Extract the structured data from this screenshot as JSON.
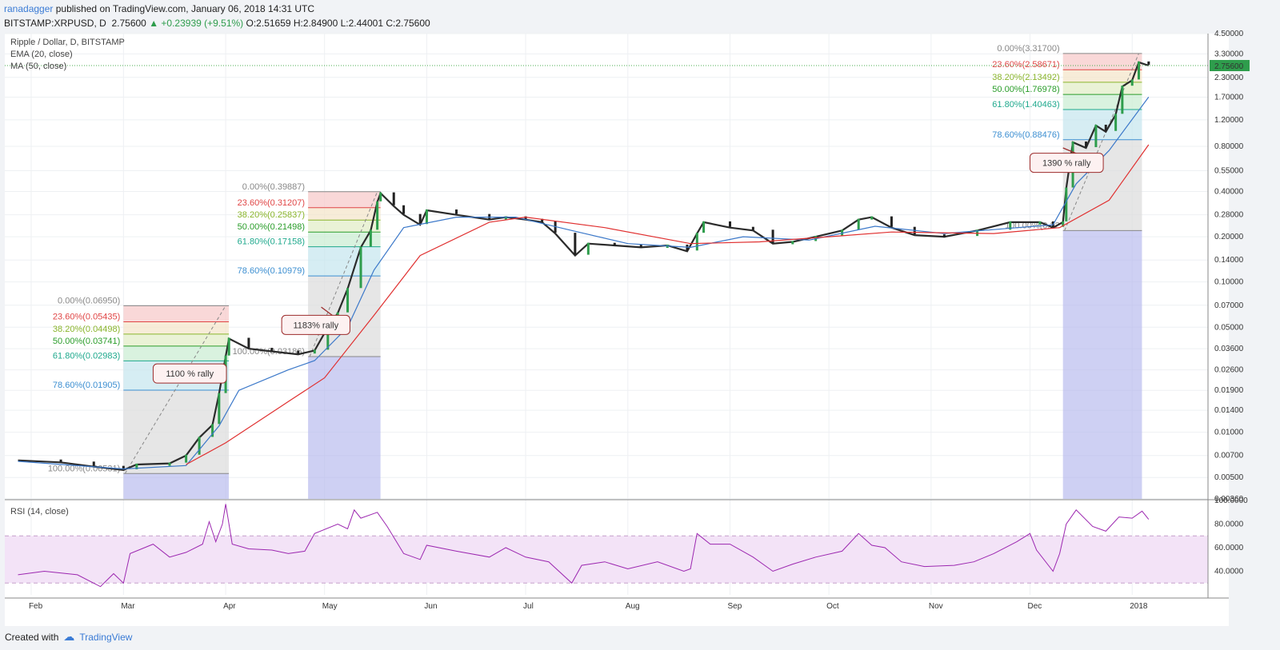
{
  "header": {
    "author": "ranadagger",
    "published": "published on TradingView.com, January 06, 2018 14:31 UTC",
    "symbol": "BITSTAMP:XRPUSD, D",
    "last": "2.75600",
    "change": "▲ +0.23939 (+9.51%)",
    "ohlc": "O:2.51659 H:2.84900 L:2.44001 C:2.75600"
  },
  "legend": {
    "title": "Ripple / Dollar, D, BITSTAMP",
    "ema": "EMA (20, close)",
    "ma": "MA (50, close)",
    "rsi": "RSI (14, close)"
  },
  "footer": {
    "created_with": "Created with",
    "brand": "TradingView"
  },
  "colors": {
    "ema": "#3b78c9",
    "ma": "#e03030",
    "rsi": "#9c27b0",
    "up": "#2e9d4c",
    "down": "#222222",
    "last_badge": "#2e9d4c"
  },
  "chart_data": [
    {
      "type": "candlestick",
      "title": "Ripple / Dollar, D, BITSTAMP",
      "y_scale": "log",
      "ylim": [
        0.0036,
        4.5
      ],
      "y_ticks": [
        "4.50000",
        "3.30000",
        "2.30000",
        "1.70000",
        "1.20000",
        "0.80000",
        "0.55000",
        "0.40000",
        "0.28000",
        "0.20000",
        "0.14000",
        "0.10000",
        "0.07000",
        "0.05000",
        "0.03600",
        "0.02600",
        "0.01900",
        "0.01400",
        "0.01000",
        "0.00700",
        "0.00500",
        "0.00360"
      ],
      "x_labels": [
        "Feb",
        "Mar",
        "Apr",
        "May",
        "Jun",
        "Jul",
        "Aug",
        "Sep",
        "Oct",
        "Nov",
        "Dec",
        "2018"
      ],
      "last_price_label": "2.75600",
      "price_path": [
        [
          "2017-01-28",
          0.0065
        ],
        [
          "2017-02-10",
          0.0063
        ],
        [
          "2017-02-20",
          0.0059
        ],
        [
          "2017-03-01",
          0.0056
        ],
        [
          "2017-03-05",
          0.0061
        ],
        [
          "2017-03-15",
          0.0062
        ],
        [
          "2017-03-20",
          0.007
        ],
        [
          "2017-03-24",
          0.0092
        ],
        [
          "2017-03-28",
          0.0112
        ],
        [
          "2017-03-30",
          0.018
        ],
        [
          "2017-04-01",
          0.032
        ],
        [
          "2017-04-02",
          0.042
        ],
        [
          "2017-04-08",
          0.036
        ],
        [
          "2017-04-15",
          0.0345
        ],
        [
          "2017-04-23",
          0.033
        ],
        [
          "2017-04-28",
          0.035
        ],
        [
          "2017-05-02",
          0.05
        ],
        [
          "2017-05-05",
          0.062
        ],
        [
          "2017-05-08",
          0.09
        ],
        [
          "2017-05-12",
          0.17
        ],
        [
          "2017-05-15",
          0.22
        ],
        [
          "2017-05-17",
          0.34
        ],
        [
          "2017-05-18",
          0.39
        ],
        [
          "2017-05-22",
          0.32
        ],
        [
          "2017-05-25",
          0.28
        ],
        [
          "2017-05-30",
          0.24
        ],
        [
          "2017-06-01",
          0.3
        ],
        [
          "2017-06-10",
          0.28
        ],
        [
          "2017-06-20",
          0.26
        ],
        [
          "2017-06-25",
          0.27
        ],
        [
          "2017-07-01",
          0.26
        ],
        [
          "2017-07-06",
          0.25
        ],
        [
          "2017-07-10",
          0.21
        ],
        [
          "2017-07-16",
          0.15
        ],
        [
          "2017-07-20",
          0.18
        ],
        [
          "2017-07-28",
          0.175
        ],
        [
          "2017-08-05",
          0.17
        ],
        [
          "2017-08-13",
          0.175
        ],
        [
          "2017-08-19",
          0.16
        ],
        [
          "2017-08-22",
          0.21
        ],
        [
          "2017-08-24",
          0.25
        ],
        [
          "2017-09-01",
          0.23
        ],
        [
          "2017-09-08",
          0.22
        ],
        [
          "2017-09-14",
          0.18
        ],
        [
          "2017-09-20",
          0.185
        ],
        [
          "2017-09-27",
          0.2
        ],
        [
          "2017-10-05",
          0.22
        ],
        [
          "2017-10-10",
          0.26
        ],
        [
          "2017-10-14",
          0.27
        ],
        [
          "2017-10-20",
          0.23
        ],
        [
          "2017-10-27",
          0.205
        ],
        [
          "2017-11-05",
          0.2
        ],
        [
          "2017-11-15",
          0.22
        ],
        [
          "2017-11-25",
          0.25
        ],
        [
          "2017-12-04",
          0.25
        ],
        [
          "2017-12-08",
          0.23
        ],
        [
          "2017-12-11",
          0.25
        ],
        [
          "2017-12-12",
          0.42
        ],
        [
          "2017-12-14",
          0.85
        ],
        [
          "2017-12-18",
          0.78
        ],
        [
          "2017-12-21",
          1.1
        ],
        [
          "2017-12-24",
          1.0
        ],
        [
          "2017-12-27",
          1.3
        ],
        [
          "2017-12-29",
          2.0
        ],
        [
          "2018-01-01",
          2.2
        ],
        [
          "2018-01-03",
          2.9
        ],
        [
          "2018-01-06",
          2.756
        ]
      ],
      "ema_path": [
        [
          "2017-01-28",
          0.0064
        ],
        [
          "2017-03-01",
          0.0057
        ],
        [
          "2017-03-20",
          0.006
        ],
        [
          "2017-03-30",
          0.011
        ],
        [
          "2017-04-05",
          0.019
        ],
        [
          "2017-04-20",
          0.026
        ],
        [
          "2017-04-28",
          0.03
        ],
        [
          "2017-05-08",
          0.05
        ],
        [
          "2017-05-16",
          0.12
        ],
        [
          "2017-05-25",
          0.23
        ],
        [
          "2017-06-10",
          0.27
        ],
        [
          "2017-06-28",
          0.27
        ],
        [
          "2017-07-15",
          0.22
        ],
        [
          "2017-08-01",
          0.18
        ],
        [
          "2017-08-20",
          0.17
        ],
        [
          "2017-09-05",
          0.2
        ],
        [
          "2017-09-25",
          0.19
        ],
        [
          "2017-10-15",
          0.235
        ],
        [
          "2017-11-05",
          0.21
        ],
        [
          "2017-12-08",
          0.24
        ],
        [
          "2017-12-15",
          0.45
        ],
        [
          "2017-12-25",
          0.75
        ],
        [
          "2018-01-06",
          1.7
        ]
      ],
      "ma_path": [
        [
          "2017-03-20",
          0.0061
        ],
        [
          "2017-04-01",
          0.0085
        ],
        [
          "2017-04-20",
          0.016
        ],
        [
          "2017-05-01",
          0.023
        ],
        [
          "2017-05-16",
          0.06
        ],
        [
          "2017-05-30",
          0.15
        ],
        [
          "2017-06-20",
          0.25
        ],
        [
          "2017-07-01",
          0.27
        ],
        [
          "2017-07-25",
          0.23
        ],
        [
          "2017-08-20",
          0.18
        ],
        [
          "2017-09-10",
          0.185
        ],
        [
          "2017-10-01",
          0.2
        ],
        [
          "2017-10-20",
          0.215
        ],
        [
          "2017-11-20",
          0.21
        ],
        [
          "2017-12-10",
          0.23
        ],
        [
          "2017-12-25",
          0.35
        ],
        [
          "2018-01-06",
          0.82
        ]
      ],
      "fib_sets": [
        {
          "start": "2017-03-01",
          "end": "2017-04-01",
          "high": 0.0695,
          "low": 0.00531,
          "levels": [
            {
              "label": "0.00%(0.06950)",
              "value": 0.0695,
              "color": "#888888"
            },
            {
              "label": "23.60%(0.05435)",
              "value": 0.05435,
              "color": "#e04646"
            },
            {
              "label": "38.20%(0.04498)",
              "value": 0.04498,
              "color": "#8ab52c"
            },
            {
              "label": "50.00%(0.03741)",
              "value": 0.03741,
              "color": "#2a9d2a"
            },
            {
              "label": "61.80%(0.02983)",
              "value": 0.02983,
              "color": "#1fa98d"
            },
            {
              "label": "78.60%(0.01905)",
              "value": 0.01905,
              "color": "#3d8fd1"
            },
            {
              "label": "100.00%(0.00531)",
              "value": 0.00531,
              "color": "#888888"
            }
          ]
        },
        {
          "start": "2017-04-26",
          "end": "2017-05-17",
          "high": 0.39887,
          "low": 0.03186,
          "levels": [
            {
              "label": "0.00%(0.39887)",
              "value": 0.39887,
              "color": "#888888"
            },
            {
              "label": "23.60%(0.31207)",
              "value": 0.31207,
              "color": "#e04646"
            },
            {
              "label": "38.20%(0.25837)",
              "value": 0.25837,
              "color": "#8ab52c"
            },
            {
              "label": "50.00%(0.21498)",
              "value": 0.21498,
              "color": "#2a9d2a"
            },
            {
              "label": "61.80%(0.17158)",
              "value": 0.17158,
              "color": "#1fa98d"
            },
            {
              "label": "78.60%(0.10979)",
              "value": 0.10979,
              "color": "#3d8fd1"
            },
            {
              "label": "100.00%(0.03186)",
              "value": 0.03186,
              "color": "#888888"
            }
          ]
        },
        {
          "start": "2017-12-11",
          "end": "2018-01-03",
          "high": 3.317,
          "low": 0.22,
          "levels": [
            {
              "label": "0.00%(3.31700)",
              "value": 3.317,
              "color": "#888888"
            },
            {
              "label": "23.60%(2.58671)",
              "value": 2.58671,
              "color": "#e04646"
            },
            {
              "label": "38.20%(2.13492)",
              "value": 2.13492,
              "color": "#8ab52c"
            },
            {
              "label": "50.00%(1.76978)",
              "value": 1.76978,
              "color": "#2a9d2a"
            },
            {
              "label": "61.80%(1.40463)",
              "value": 1.40463,
              "color": "#1fa98d"
            },
            {
              "label": "78.60%(0.88476)",
              "value": 0.88476,
              "color": "#3d8fd1"
            },
            {
              "label": "100.00%(0.22",
              "value": 0.22,
              "color": "#888888"
            }
          ]
        }
      ],
      "annotations": [
        {
          "text": "1100 % rally",
          "date": "2017-03-10",
          "value": 0.0285,
          "arrow_to": [
            "2017-03-21",
            0.0215
          ]
        },
        {
          "text": "1183% rally",
          "date": "2017-04-18",
          "value": 0.06,
          "arrow_to": [
            "2017-04-30",
            0.068
          ]
        },
        {
          "text": "1390 % rally",
          "date": "2017-12-01",
          "value": 0.72,
          "arrow_to": [
            "2017-12-11",
            0.78
          ]
        }
      ]
    },
    {
      "type": "line",
      "title": "RSI (14, close)",
      "ylim": [
        20,
        100
      ],
      "y_ticks": [
        "100.0000",
        "80.0000",
        "60.0000",
        "40.0000"
      ],
      "band": [
        30,
        70
      ],
      "series": [
        {
          "name": "RSI (14, close)",
          "points": [
            [
              "2017-01-28",
              37
            ],
            [
              "2017-02-05",
              40
            ],
            [
              "2017-02-15",
              37
            ],
            [
              "2017-02-22",
              27
            ],
            [
              "2017-02-26",
              38
            ],
            [
              "2017-03-01",
              30
            ],
            [
              "2017-03-03",
              55
            ],
            [
              "2017-03-10",
              63
            ],
            [
              "2017-03-15",
              52
            ],
            [
              "2017-03-20",
              56
            ],
            [
              "2017-03-25",
              63
            ],
            [
              "2017-03-27",
              82
            ],
            [
              "2017-03-29",
              65
            ],
            [
              "2017-03-31",
              80
            ],
            [
              "2017-04-01",
              97
            ],
            [
              "2017-04-03",
              63
            ],
            [
              "2017-04-08",
              59
            ],
            [
              "2017-04-15",
              58
            ],
            [
              "2017-04-20",
              55
            ],
            [
              "2017-04-25",
              57
            ],
            [
              "2017-04-28",
              72
            ],
            [
              "2017-05-05",
              80
            ],
            [
              "2017-05-08",
              76
            ],
            [
              "2017-05-10",
              92
            ],
            [
              "2017-05-12",
              85
            ],
            [
              "2017-05-17",
              90
            ],
            [
              "2017-05-20",
              78
            ],
            [
              "2017-05-25",
              55
            ],
            [
              "2017-05-30",
              50
            ],
            [
              "2017-06-01",
              62
            ],
            [
              "2017-06-10",
              57
            ],
            [
              "2017-06-20",
              52
            ],
            [
              "2017-06-25",
              60
            ],
            [
              "2017-07-01",
              52
            ],
            [
              "2017-07-08",
              48
            ],
            [
              "2017-07-15",
              30
            ],
            [
              "2017-07-18",
              45
            ],
            [
              "2017-07-25",
              48
            ],
            [
              "2017-08-01",
              42
            ],
            [
              "2017-08-10",
              48
            ],
            [
              "2017-08-18",
              40
            ],
            [
              "2017-08-20",
              42
            ],
            [
              "2017-08-22",
              72
            ],
            [
              "2017-08-26",
              63
            ],
            [
              "2017-09-01",
              63
            ],
            [
              "2017-09-08",
              52
            ],
            [
              "2017-09-14",
              40
            ],
            [
              "2017-09-20",
              46
            ],
            [
              "2017-09-27",
              52
            ],
            [
              "2017-10-05",
              57
            ],
            [
              "2017-10-10",
              72
            ],
            [
              "2017-10-14",
              62
            ],
            [
              "2017-10-18",
              60
            ],
            [
              "2017-10-23",
              48
            ],
            [
              "2017-10-30",
              44
            ],
            [
              "2017-11-08",
              45
            ],
            [
              "2017-11-14",
              48
            ],
            [
              "2017-11-20",
              55
            ],
            [
              "2017-11-27",
              65
            ],
            [
              "2017-12-01",
              72
            ],
            [
              "2017-12-03",
              58
            ],
            [
              "2017-12-08",
              40
            ],
            [
              "2017-12-10",
              55
            ],
            [
              "2017-12-12",
              80
            ],
            [
              "2017-12-15",
              92
            ],
            [
              "2017-12-20",
              78
            ],
            [
              "2017-12-24",
              74
            ],
            [
              "2017-12-28",
              86
            ],
            [
              "2018-01-01",
              85
            ],
            [
              "2018-01-04",
              91
            ],
            [
              "2018-01-06",
              84
            ]
          ]
        }
      ]
    }
  ]
}
